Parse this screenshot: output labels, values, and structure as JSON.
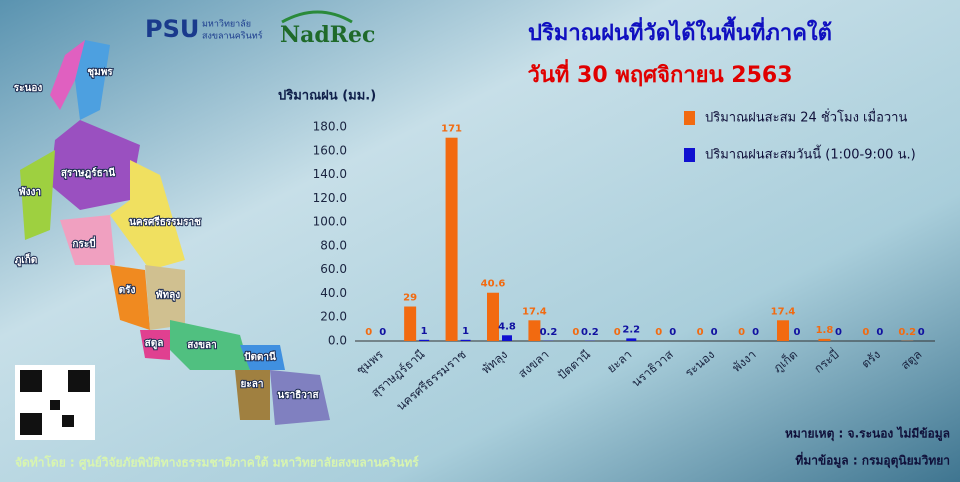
{
  "header": {
    "logo": "PSU",
    "logo_line1": "มหาวิทยาลัย",
    "logo_line2": "สงขลานครินทร์",
    "partner": "NadRec"
  },
  "chart_data": {
    "type": "bar",
    "title": "ปริมาณฝนที่วัดได้ในพื้นที่ภาคใต้",
    "subtitle": "วันที่ 30 พฤศจิกายน 2563",
    "y_label": "ปริมาณฝน (มม.)",
    "categories": [
      "ชุมพร",
      "สุราษฎร์ธานี",
      "นครศรีธรรมราช",
      "พัทลุง",
      "สงขลา",
      "ปัตตานี",
      "ยะลา",
      "นราธิวาส",
      "ระนอง",
      "พังงา",
      "ภูเก็ต",
      "กระบี่",
      "ตรัง",
      "สตูล"
    ],
    "series": [
      {
        "name": "ปริมาณฝนสะสม 24 ชั่วโมง เมื่อวาน",
        "color": "#f26a10",
        "values": [
          0,
          29,
          171,
          40.6,
          17.4,
          0,
          0,
          0,
          0,
          0,
          17.4,
          1.8,
          0,
          0.2
        ]
      },
      {
        "name": "ปริมาณฝนสะสมวันนี้ (1:00-9:00 น.)",
        "color": "#1010d0",
        "values": [
          0,
          1,
          1,
          4.8,
          0.2,
          0.2,
          2.2,
          0,
          0,
          0,
          0,
          0,
          0,
          0
        ]
      }
    ],
    "ylim": [
      0,
      180
    ],
    "yticks": [
      {
        "value": 0,
        "label": "0.0"
      },
      {
        "value": 20,
        "label": "20.0"
      },
      {
        "value": 40,
        "label": "40.0"
      },
      {
        "value": 60,
        "label": "60.0"
      },
      {
        "value": 80,
        "label": "80.0"
      },
      {
        "value": 100,
        "label": "100.0"
      },
      {
        "value": 120,
        "label": "120.0"
      },
      {
        "value": 140,
        "label": "140.0"
      },
      {
        "value": 160,
        "label": "160.0"
      },
      {
        "value": 180,
        "label": "180.0"
      }
    ],
    "legend": "upper right"
  },
  "map": {
    "labels": [
      "ชุมพร",
      "ระนอง",
      "สุราษฎร์ธานี",
      "พังงา",
      "นครศรีธรรมราช",
      "กระบี่",
      "ภูเก็ต",
      "ตรัง",
      "พัทลุง",
      "สตูล",
      "สงขลา",
      "ปัตตานี",
      "ยะลา",
      "นราธิวาส"
    ]
  },
  "notes": {
    "remark": "หมายเหตุ : จ.ระนอง ไม่มีข้อมูล",
    "source": "ที่มาข้อมูล : กรมอุตุนิยมวิทยา"
  },
  "footer": {
    "credit": "จัดทำโดย : ศูนย์วิจัยภัยพิบัติทางธรรมชาติภาคใต้ มหาวิทยาลัยสงขลานครินทร์"
  }
}
